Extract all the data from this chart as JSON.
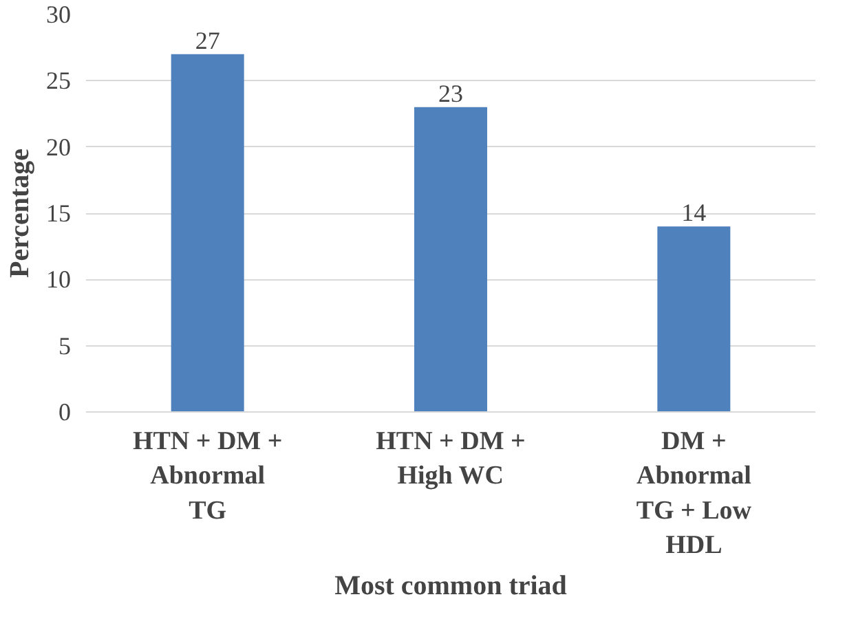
{
  "chart_data": {
    "type": "bar",
    "xlabel": "Most common triad",
    "ylabel": "Percentage",
    "categories": [
      "HTN + DM + Abnormal TG",
      "HTN + DM + High WC",
      "DM + Abnormal TG + Low HDL"
    ],
    "values": [
      27,
      23,
      14
    ],
    "color": "#4f81bd",
    "ylim": [
      0,
      30
    ],
    "yticks": [
      0,
      5,
      10,
      15,
      20,
      25,
      30
    ],
    "grid": "y",
    "data_labels": true
  }
}
